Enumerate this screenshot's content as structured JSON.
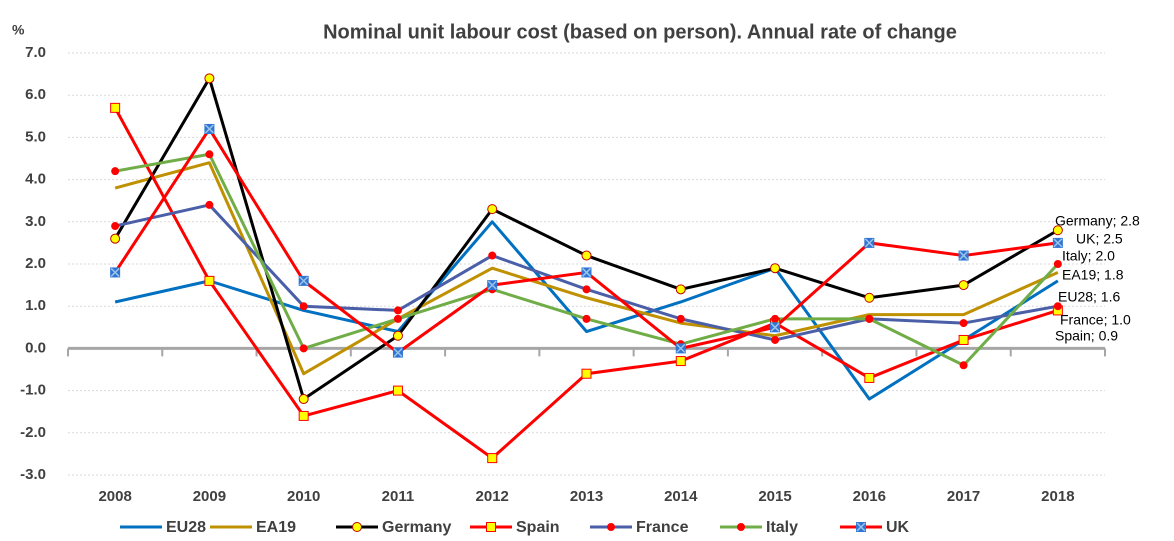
{
  "chart_data": {
    "type": "line",
    "title": "Nominal unit labour cost (based on person). Annual rate of change",
    "y_label": "%",
    "categories": [
      "2008",
      "2009",
      "2010",
      "2011",
      "2012",
      "2013",
      "2014",
      "2015",
      "2016",
      "2017",
      "2018"
    ],
    "ylim": [
      -3,
      7
    ],
    "yticks": [
      {
        "value": -3,
        "label": "-3.0"
      },
      {
        "value": -2,
        "label": "-2.0"
      },
      {
        "value": -1,
        "label": "-1.0"
      },
      {
        "value": 0,
        "label": "0.0"
      },
      {
        "value": 1,
        "label": "1.0"
      },
      {
        "value": 2,
        "label": "2.0"
      },
      {
        "value": 3,
        "label": "3.0"
      },
      {
        "value": 4,
        "label": "4.0"
      },
      {
        "value": 5,
        "label": "5.0"
      },
      {
        "value": 6,
        "label": "6.0"
      },
      {
        "value": 7,
        "label": "7.0"
      }
    ],
    "grid": true,
    "legend": "bottom",
    "series": [
      {
        "name": "EU28",
        "color": "#0070c0",
        "marker": "none",
        "values": [
          1.1,
          1.6,
          0.9,
          0.4,
          3.0,
          0.4,
          1.1,
          1.9,
          -1.2,
          0.2,
          1.6
        ],
        "value_labels": [
          null,
          null,
          null,
          null,
          null,
          null,
          null,
          null,
          null,
          null,
          "EU28; 1.6"
        ]
      },
      {
        "name": "EA19",
        "color": "#bf9000",
        "marker": "none",
        "values": [
          3.8,
          4.4,
          -0.6,
          0.7,
          1.9,
          1.2,
          0.6,
          0.3,
          0.8,
          0.8,
          1.8
        ],
        "value_labels": [
          null,
          null,
          null,
          null,
          null,
          null,
          null,
          null,
          null,
          null,
          "EA19; 1.8"
        ]
      },
      {
        "name": "Germany",
        "color": "#000000",
        "marker": "circle",
        "marker_fill": "#ffff00",
        "marker_stroke": "#c00000",
        "values": [
          2.6,
          6.4,
          -1.2,
          0.3,
          3.3,
          2.2,
          1.4,
          1.9,
          1.2,
          1.5,
          2.8
        ],
        "value_labels": [
          null,
          null,
          null,
          null,
          null,
          null,
          null,
          null,
          null,
          null,
          "Germany; 2.8"
        ]
      },
      {
        "name": "Spain",
        "color": "#ff0000",
        "marker": "square",
        "marker_fill": "#ffff00",
        "marker_stroke": "#ff0000",
        "values": [
          5.7,
          1.6,
          -1.6,
          -1.0,
          -2.6,
          -0.6,
          -0.3,
          0.6,
          -0.7,
          0.2,
          0.9
        ],
        "value_labels": [
          null,
          null,
          null,
          null,
          null,
          null,
          null,
          null,
          null,
          null,
          "Spain; 0.9"
        ]
      },
      {
        "name": "France",
        "color": "#4a5fa8",
        "marker": "dot",
        "marker_fill": "#ff0000",
        "marker_stroke": "#ff0000",
        "values": [
          2.9,
          3.4,
          1.0,
          0.9,
          2.2,
          1.4,
          0.7,
          0.2,
          0.7,
          0.6,
          1.0
        ],
        "value_labels": [
          null,
          null,
          null,
          null,
          null,
          null,
          null,
          null,
          null,
          null,
          "France; 1.0"
        ]
      },
      {
        "name": "Italy",
        "color": "#70ad47",
        "marker": "dot",
        "marker_fill": "#ff0000",
        "marker_stroke": "#ff0000",
        "values": [
          4.2,
          4.6,
          0.0,
          0.7,
          1.4,
          0.7,
          0.1,
          0.7,
          0.7,
          -0.4,
          2.0
        ],
        "value_labels": [
          null,
          null,
          null,
          null,
          null,
          null,
          null,
          null,
          null,
          null,
          "Italy; 2.0"
        ]
      },
      {
        "name": "UK",
        "color": "#ff0000",
        "marker": "xsquare",
        "marker_fill": "#2e75d6",
        "marker_stroke": "#9dc3e6",
        "values": [
          1.8,
          5.2,
          1.6,
          -0.1,
          1.5,
          1.8,
          0.0,
          0.5,
          2.5,
          2.2,
          2.5
        ],
        "value_labels": [
          null,
          null,
          null,
          null,
          null,
          null,
          null,
          null,
          null,
          null,
          "UK; 2.5"
        ]
      }
    ]
  }
}
